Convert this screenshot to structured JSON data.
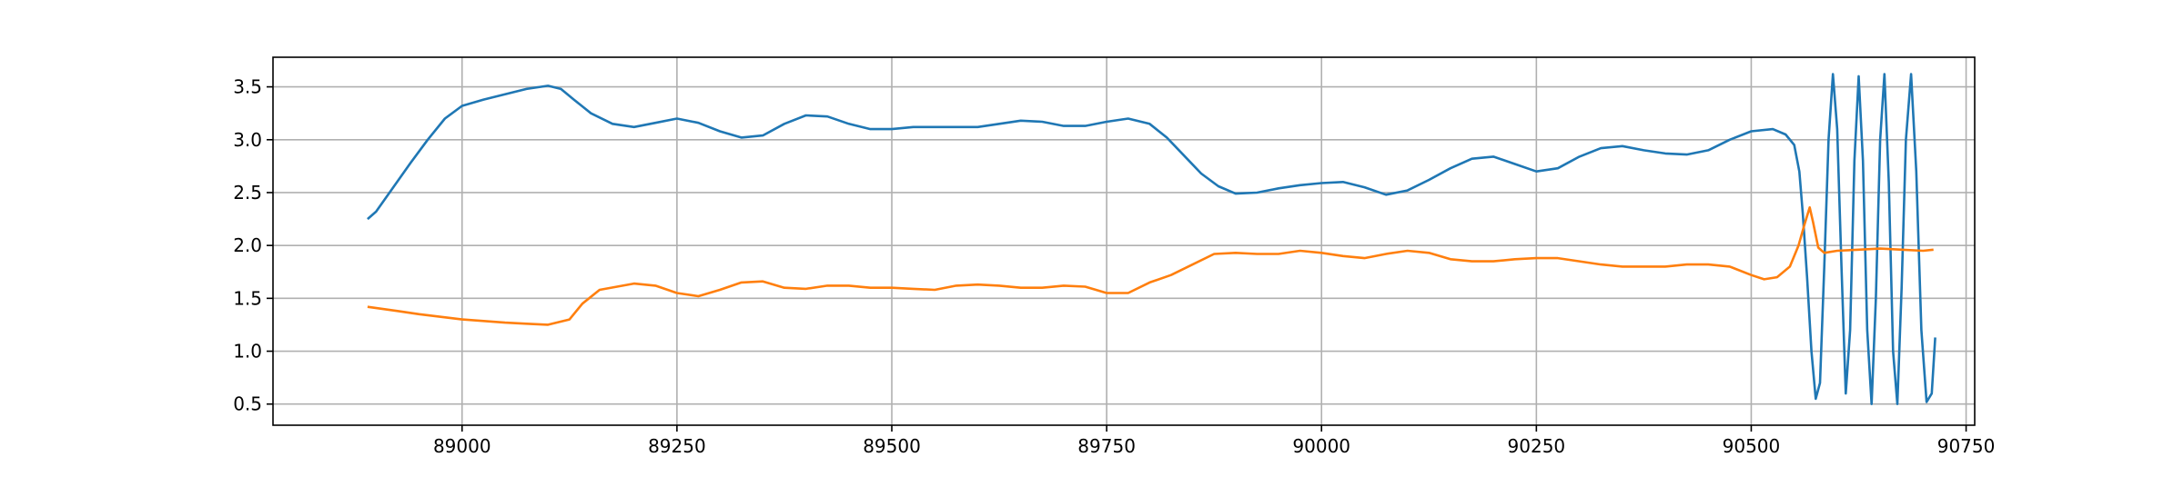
{
  "chart_data": {
    "type": "line",
    "title": "",
    "xlabel": "",
    "ylabel": "",
    "xlim": [
      88780,
      90760
    ],
    "ylim": [
      0.3,
      3.78
    ],
    "grid": true,
    "legend": "none",
    "x_ticks": [
      89000,
      89250,
      89500,
      89750,
      90000,
      90250,
      90500,
      90750
    ],
    "x_tick_labels": [
      "89000",
      "89250",
      "89500",
      "89750",
      "90000",
      "90250",
      "90500",
      "90750"
    ],
    "y_ticks": [
      0.5,
      1.0,
      1.5,
      2.0,
      2.5,
      3.0,
      3.5
    ],
    "y_tick_labels": [
      "0.5",
      "1.0",
      "1.5",
      "2.0",
      "2.5",
      "3.0",
      "3.5"
    ],
    "series": [
      {
        "color": "#1f77b4",
        "points": [
          [
            88890,
            2.25
          ],
          [
            88900,
            2.32
          ],
          [
            88920,
            2.55
          ],
          [
            88940,
            2.78
          ],
          [
            88960,
            3.0
          ],
          [
            88980,
            3.2
          ],
          [
            89000,
            3.32
          ],
          [
            89025,
            3.38
          ],
          [
            89050,
            3.43
          ],
          [
            89075,
            3.48
          ],
          [
            89100,
            3.51
          ],
          [
            89115,
            3.48
          ],
          [
            89130,
            3.38
          ],
          [
            89150,
            3.25
          ],
          [
            89175,
            3.15
          ],
          [
            89200,
            3.12
          ],
          [
            89225,
            3.16
          ],
          [
            89250,
            3.2
          ],
          [
            89275,
            3.16
          ],
          [
            89300,
            3.08
          ],
          [
            89325,
            3.02
          ],
          [
            89350,
            3.04
          ],
          [
            89375,
            3.15
          ],
          [
            89400,
            3.23
          ],
          [
            89425,
            3.22
          ],
          [
            89450,
            3.15
          ],
          [
            89475,
            3.1
          ],
          [
            89500,
            3.1
          ],
          [
            89525,
            3.12
          ],
          [
            89550,
            3.12
          ],
          [
            89575,
            3.12
          ],
          [
            89600,
            3.12
          ],
          [
            89625,
            3.15
          ],
          [
            89650,
            3.18
          ],
          [
            89675,
            3.17
          ],
          [
            89700,
            3.13
          ],
          [
            89725,
            3.13
          ],
          [
            89750,
            3.17
          ],
          [
            89775,
            3.2
          ],
          [
            89800,
            3.15
          ],
          [
            89820,
            3.02
          ],
          [
            89840,
            2.85
          ],
          [
            89860,
            2.68
          ],
          [
            89880,
            2.56
          ],
          [
            89900,
            2.49
          ],
          [
            89925,
            2.5
          ],
          [
            89950,
            2.54
          ],
          [
            89975,
            2.57
          ],
          [
            90000,
            2.59
          ],
          [
            90025,
            2.6
          ],
          [
            90050,
            2.55
          ],
          [
            90075,
            2.48
          ],
          [
            90100,
            2.52
          ],
          [
            90125,
            2.62
          ],
          [
            90150,
            2.73
          ],
          [
            90175,
            2.82
          ],
          [
            90200,
            2.84
          ],
          [
            90225,
            2.77
          ],
          [
            90250,
            2.7
          ],
          [
            90275,
            2.73
          ],
          [
            90300,
            2.84
          ],
          [
            90325,
            2.92
          ],
          [
            90350,
            2.94
          ],
          [
            90375,
            2.9
          ],
          [
            90400,
            2.87
          ],
          [
            90425,
            2.86
          ],
          [
            90450,
            2.9
          ],
          [
            90475,
            3.0
          ],
          [
            90500,
            3.08
          ],
          [
            90525,
            3.1
          ],
          [
            90540,
            3.05
          ],
          [
            90550,
            2.95
          ],
          [
            90556,
            2.7
          ],
          [
            90560,
            2.3
          ],
          [
            90565,
            1.7
          ],
          [
            90570,
            1.0
          ],
          [
            90575,
            0.55
          ],
          [
            90580,
            0.7
          ],
          [
            90585,
            1.8
          ],
          [
            90590,
            3.0
          ],
          [
            90595,
            3.62
          ],
          [
            90600,
            3.1
          ],
          [
            90605,
            1.8
          ],
          [
            90610,
            0.6
          ],
          [
            90615,
            1.2
          ],
          [
            90620,
            2.8
          ],
          [
            90625,
            3.6
          ],
          [
            90630,
            2.8
          ],
          [
            90635,
            1.2
          ],
          [
            90640,
            0.5
          ],
          [
            90645,
            1.5
          ],
          [
            90650,
            3.0
          ],
          [
            90655,
            3.62
          ],
          [
            90660,
            2.6
          ],
          [
            90665,
            1.0
          ],
          [
            90670,
            0.5
          ],
          [
            90675,
            1.6
          ],
          [
            90680,
            3.0
          ],
          [
            90686,
            3.62
          ],
          [
            90692,
            2.7
          ],
          [
            90698,
            1.2
          ],
          [
            90704,
            0.52
          ],
          [
            90710,
            0.6
          ],
          [
            90714,
            1.13
          ]
        ]
      },
      {
        "color": "#ff7f0e",
        "points": [
          [
            88890,
            1.42
          ],
          [
            88925,
            1.38
          ],
          [
            88950,
            1.35
          ],
          [
            89000,
            1.3
          ],
          [
            89050,
            1.27
          ],
          [
            89075,
            1.26
          ],
          [
            89100,
            1.25
          ],
          [
            89125,
            1.3
          ],
          [
            89140,
            1.45
          ],
          [
            89160,
            1.58
          ],
          [
            89200,
            1.64
          ],
          [
            89225,
            1.62
          ],
          [
            89250,
            1.55
          ],
          [
            89275,
            1.52
          ],
          [
            89300,
            1.58
          ],
          [
            89325,
            1.65
          ],
          [
            89350,
            1.66
          ],
          [
            89375,
            1.6
          ],
          [
            89400,
            1.59
          ],
          [
            89425,
            1.62
          ],
          [
            89450,
            1.62
          ],
          [
            89475,
            1.6
          ],
          [
            89500,
            1.6
          ],
          [
            89525,
            1.59
          ],
          [
            89550,
            1.58
          ],
          [
            89575,
            1.62
          ],
          [
            89600,
            1.63
          ],
          [
            89625,
            1.62
          ],
          [
            89650,
            1.6
          ],
          [
            89675,
            1.6
          ],
          [
            89700,
            1.62
          ],
          [
            89725,
            1.61
          ],
          [
            89750,
            1.55
          ],
          [
            89775,
            1.55
          ],
          [
            89800,
            1.65
          ],
          [
            89825,
            1.72
          ],
          [
            89850,
            1.82
          ],
          [
            89875,
            1.92
          ],
          [
            89900,
            1.93
          ],
          [
            89925,
            1.92
          ],
          [
            89950,
            1.92
          ],
          [
            89975,
            1.95
          ],
          [
            90000,
            1.93
          ],
          [
            90025,
            1.9
          ],
          [
            90050,
            1.88
          ],
          [
            90075,
            1.92
          ],
          [
            90100,
            1.95
          ],
          [
            90125,
            1.93
          ],
          [
            90150,
            1.87
          ],
          [
            90175,
            1.85
          ],
          [
            90200,
            1.85
          ],
          [
            90225,
            1.87
          ],
          [
            90250,
            1.88
          ],
          [
            90275,
            1.88
          ],
          [
            90300,
            1.85
          ],
          [
            90325,
            1.82
          ],
          [
            90350,
            1.8
          ],
          [
            90375,
            1.8
          ],
          [
            90400,
            1.8
          ],
          [
            90425,
            1.82
          ],
          [
            90450,
            1.82
          ],
          [
            90475,
            1.8
          ],
          [
            90500,
            1.72
          ],
          [
            90515,
            1.68
          ],
          [
            90530,
            1.7
          ],
          [
            90545,
            1.8
          ],
          [
            90555,
            2.0
          ],
          [
            90562,
            2.2
          ],
          [
            90568,
            2.36
          ],
          [
            90572,
            2.22
          ],
          [
            90578,
            1.98
          ],
          [
            90585,
            1.93
          ],
          [
            90600,
            1.95
          ],
          [
            90625,
            1.96
          ],
          [
            90650,
            1.97
          ],
          [
            90675,
            1.96
          ],
          [
            90700,
            1.95
          ],
          [
            90712,
            1.96
          ]
        ]
      }
    ]
  }
}
